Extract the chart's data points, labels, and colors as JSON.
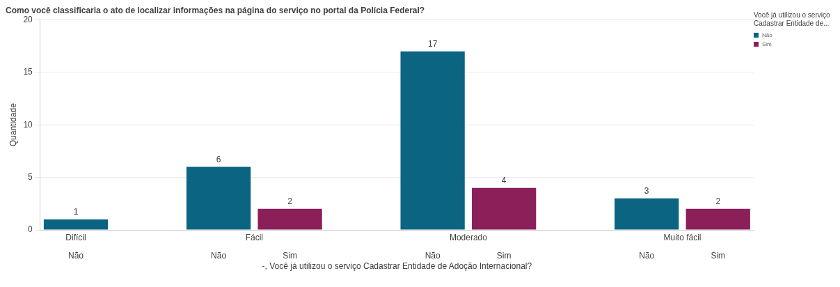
{
  "chart_data": {
    "type": "bar",
    "title": "Como você classificaria o ato de localizar informações na página do serviço no portal da Polícia Federal?",
    "xlabel": "-, Você já utilizou o serviço Cadastrar Entidade de Adoção Internacional?",
    "ylabel": "Quantidade",
    "legend_title": "Você já utilizou o serviço Cadastrar Entidade de...",
    "categories": [
      "Difícil",
      "Fácil",
      "Moderado",
      "Muito fácil"
    ],
    "series": [
      {
        "name": "Não",
        "color": "#0b6482",
        "values": [
          1,
          6,
          17,
          3
        ]
      },
      {
        "name": "Sim",
        "color": "#8a1f5a",
        "values": [
          null,
          2,
          4,
          2
        ]
      }
    ],
    "ylim": [
      0,
      20
    ],
    "yticks": [
      0,
      5,
      10,
      15,
      20
    ],
    "grid": "y",
    "legend": "top right",
    "data_labels": true
  }
}
